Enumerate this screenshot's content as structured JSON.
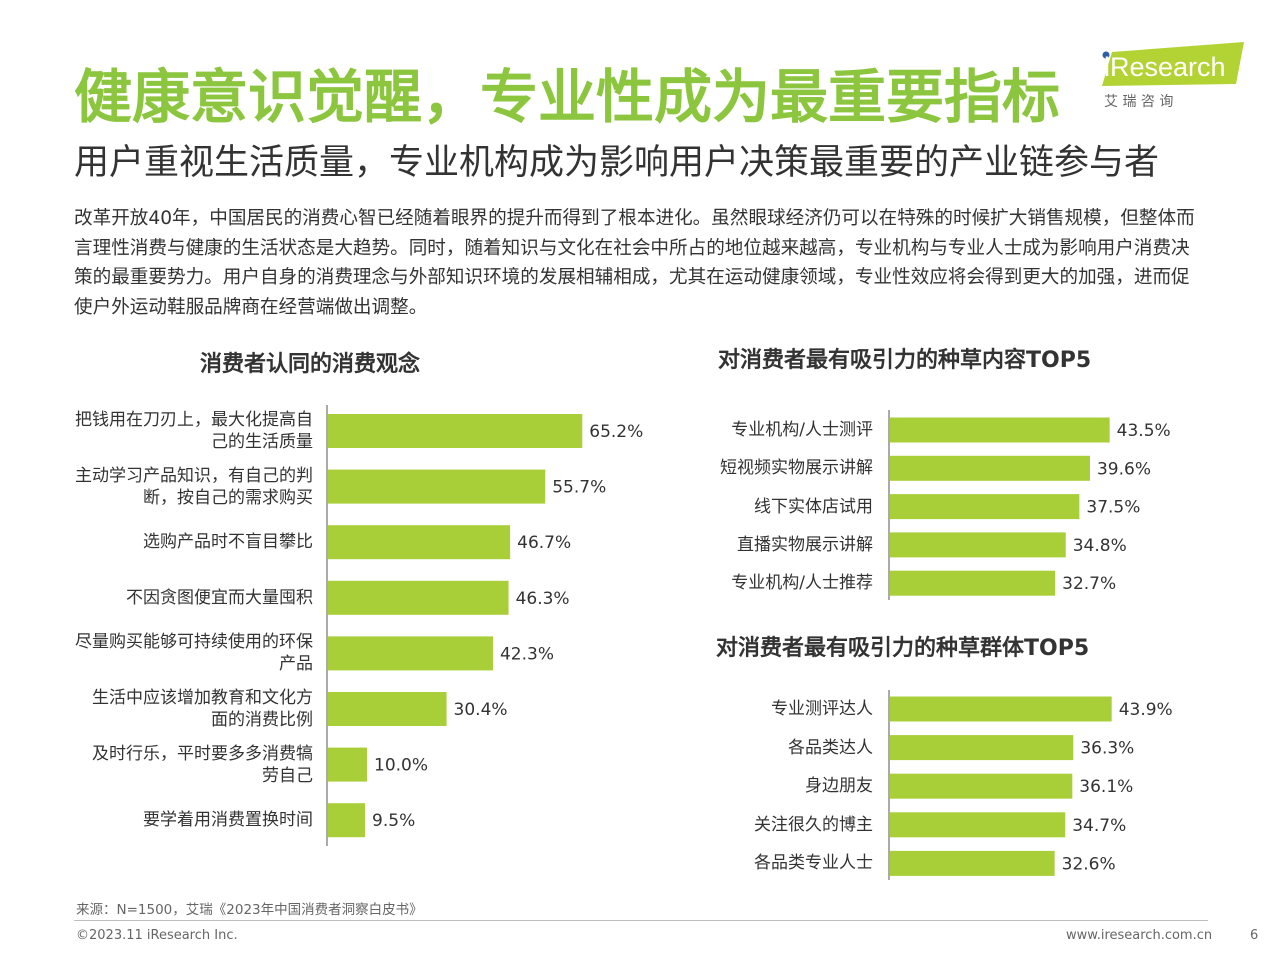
{
  "header": {
    "title": "健康意识觉醒，专业性成为最重要指标",
    "subtitle": "用户重视生活质量，专业机构成为影响用户决策最重要的产业链参与者"
  },
  "logo": {
    "brand": "iResearch",
    "cn": "艾 瑞 咨 询"
  },
  "body_text": "改革开放40年，中国居民的消费心智已经随着眼界的提升而得到了根本进化。虽然眼球经济仍可以在特殊的时候扩大销售规模，但整体而言理性消费与健康的生活状态是大趋势。同时，随着知识与文化在社会中所占的地位越来越高，专业机构与专业人士成为影响用户消费决策的最重要势力。用户自身的消费理念与外部知识环境的发展相辅相成，尤其在运动健康领域，专业性效应将会得到更大的加强，进而促使户外运动鞋服品牌商在经营端做出调整。",
  "colors": {
    "accent": "#8cc63f",
    "bar": "#a9cf38",
    "text": "#333333"
  },
  "chart_data": [
    {
      "type": "bar",
      "orientation": "horizontal",
      "title": "消费者认同的消费观念",
      "categories": [
        "把钱用在刀刃上，最大化提高自己的生活质量",
        "主动学习产品知识，有自己的判断，按自己的需求购买",
        "选购产品时不盲目攀比",
        "不因贪图便宜而大量囤积",
        "尽量购买能够可持续使用的环保产品",
        "生活中应该增加教育和文化方面的消费比例",
        "及时行乐，平时要多多消费犒劳自己",
        "要学着用消费置换时间"
      ],
      "label_lines": [
        [
          "把钱用在刀刃上，最大化提高自",
          "己的生活质量"
        ],
        [
          "主动学习产品知识，有自己的判",
          "断，按自己的需求购买"
        ],
        [
          "选购产品时不盲目攀比"
        ],
        [
          "不因贪图便宜而大量囤积"
        ],
        [
          "尽量购买能够可持续使用的环保",
          "产品"
        ],
        [
          "生活中应该增加教育和文化方",
          "面的消费比例"
        ],
        [
          "及时行乐，平时要多多消费犒",
          "劳自己"
        ],
        [
          "要学着用消费置换时间"
        ]
      ],
      "values": [
        65.2,
        55.7,
        46.7,
        46.3,
        42.3,
        30.4,
        10.0,
        9.5
      ],
      "value_labels": [
        "65.2%",
        "55.7%",
        "46.7%",
        "46.3%",
        "42.3%",
        "30.4%",
        "10.0%",
        "9.5%"
      ],
      "unit": "%"
    },
    {
      "type": "bar",
      "orientation": "horizontal",
      "title": "对消费者最有吸引力的种草内容TOP5",
      "categories": [
        "专业机构/人士测评",
        "短视频实物展示讲解",
        "线下实体店试用",
        "直播实物展示讲解",
        "专业机构/人士推荐"
      ],
      "values": [
        43.5,
        39.6,
        37.5,
        34.8,
        32.7
      ],
      "value_labels": [
        "43.5%",
        "39.6%",
        "37.5%",
        "34.8%",
        "32.7%"
      ],
      "unit": "%"
    },
    {
      "type": "bar",
      "orientation": "horizontal",
      "title": "对消费者最有吸引力的种草群体TOP5",
      "categories": [
        "专业测评达人",
        "各品类达人",
        "身边朋友",
        "关注很久的博主",
        "各品类专业人士"
      ],
      "values": [
        43.9,
        36.3,
        36.1,
        34.7,
        32.6
      ],
      "value_labels": [
        "43.9%",
        "36.3%",
        "36.1%",
        "34.7%",
        "32.6%"
      ],
      "unit": "%"
    }
  ],
  "footer": {
    "source": "来源：N=1500，艾瑞《2023年中国消费者洞察白皮书》",
    "copyright": "©2023.11 iResearch Inc.",
    "website": "www.iresearch.com.cn",
    "page": "6"
  }
}
